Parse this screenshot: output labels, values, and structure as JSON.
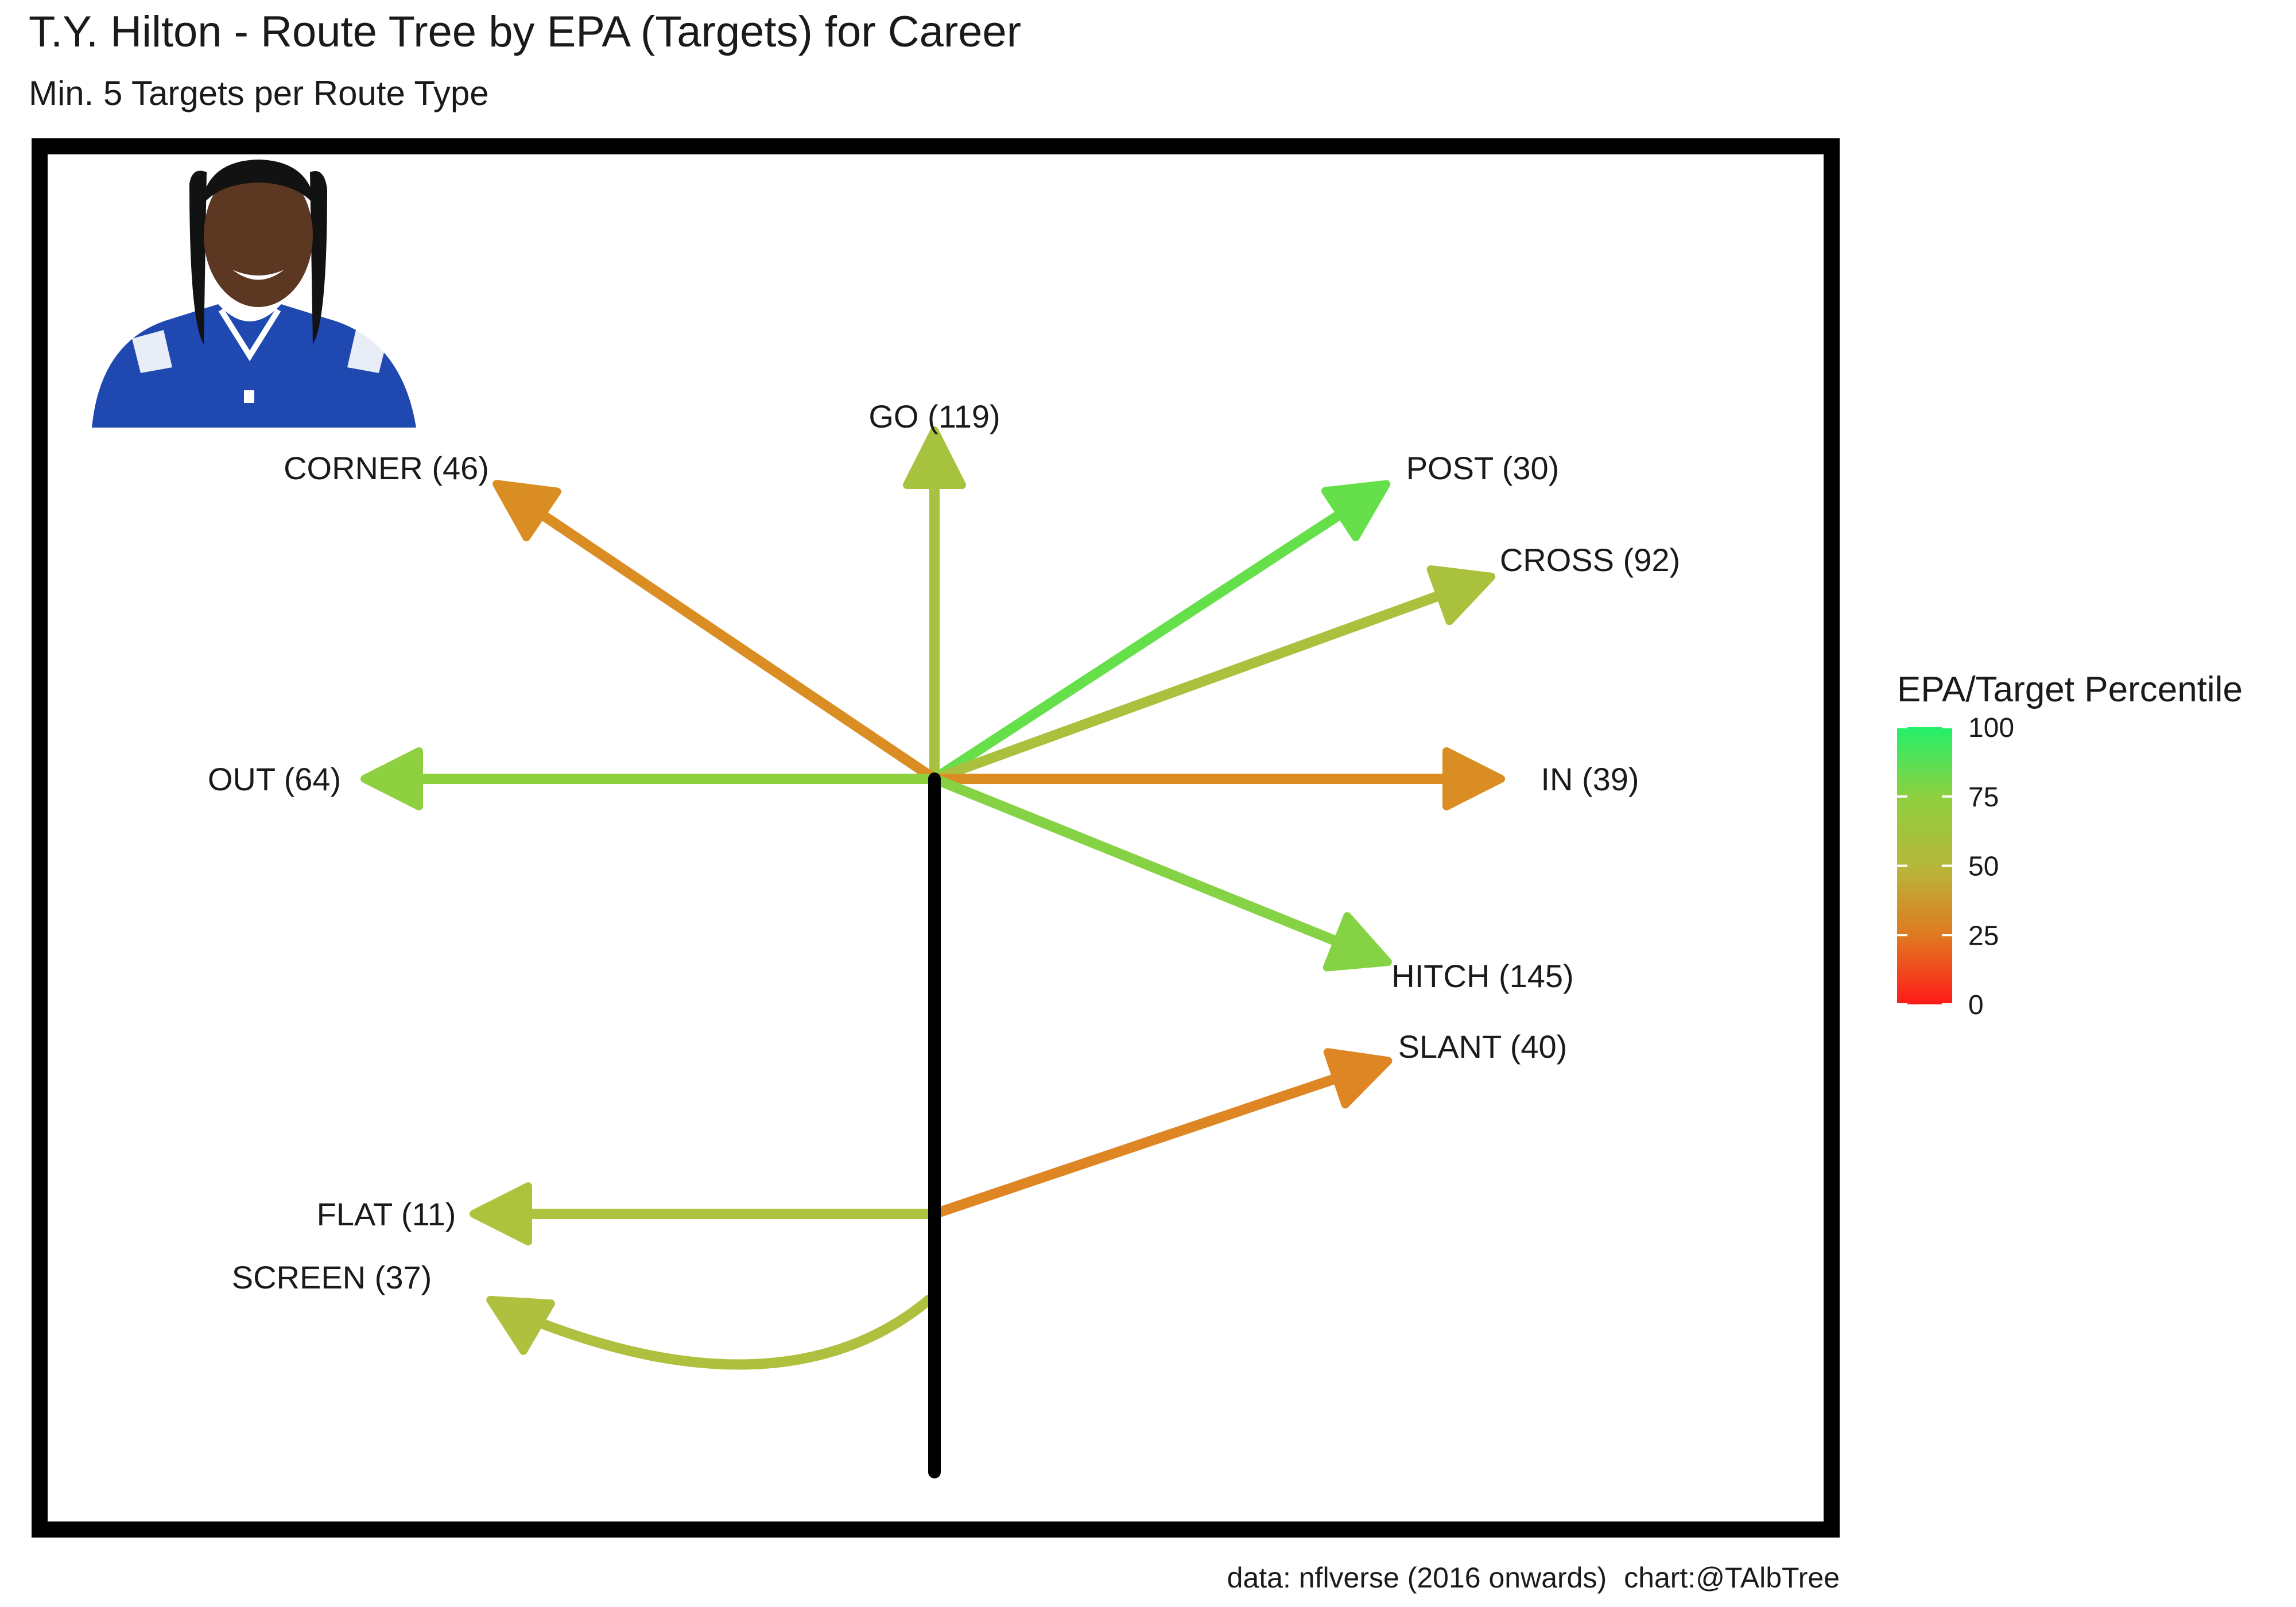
{
  "title": "T.Y. Hilton - Route Tree by EPA (Targets) for Career",
  "subtitle": "Min. 5 Targets per Route Type",
  "caption": {
    "data": "data: nflverse (2016 onwards)",
    "chart": "chart:@TAlbTree"
  },
  "chart_data": {
    "type": "route-tree",
    "routes": [
      {
        "route": "GO",
        "targets": 119,
        "label": "GO (119)",
        "percentile": 58,
        "color": "#a6c23e"
      },
      {
        "route": "CORNER",
        "targets": 46,
        "label": "CORNER (46)",
        "percentile": 38,
        "color": "#d98d22"
      },
      {
        "route": "POST",
        "targets": 30,
        "label": "POST (30)",
        "percentile": 92,
        "color": "#66e04a"
      },
      {
        "route": "CROSS",
        "targets": 92,
        "label": "CROSS (92)",
        "percentile": 58,
        "color": "#aac13d"
      },
      {
        "route": "OUT",
        "targets": 64,
        "label": "OUT (64)",
        "percentile": 68,
        "color": "#8ed040"
      },
      {
        "route": "IN",
        "targets": 39,
        "label": "IN (39)",
        "percentile": 38,
        "color": "#d98d22"
      },
      {
        "route": "HITCH",
        "targets": 145,
        "label": "HITCH (145)",
        "percentile": 72,
        "color": "#85d345"
      },
      {
        "route": "SLANT",
        "targets": 40,
        "label": "SLANT (40)",
        "percentile": 35,
        "color": "#dd8623"
      },
      {
        "route": "FLAT",
        "targets": 11,
        "label": "FLAT (11)",
        "percentile": 56,
        "color": "#adc23d"
      },
      {
        "route": "SCREEN",
        "targets": 37,
        "label": "SCREEN (37)",
        "percentile": 55,
        "color": "#aec03e"
      }
    ],
    "legend": {
      "title": "EPA/Target Percentile",
      "ticks": [
        100,
        75,
        50,
        25,
        0
      ],
      "range": [
        0,
        100
      ],
      "colors_low_to_high": [
        "#ff1a1a",
        "#e07a20",
        "#b6b83a",
        "#8ed040",
        "#22f06a"
      ],
      "placement": "right"
    },
    "player_photo": "player-headshot"
  }
}
